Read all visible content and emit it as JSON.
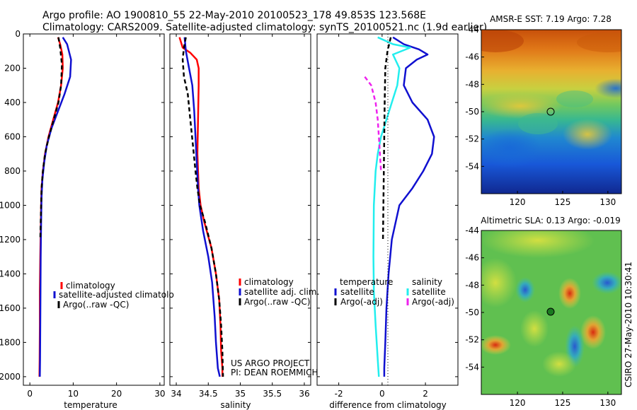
{
  "header": {
    "line1": "Argo profile: AO 1900810_55 22-May-2010 20100523_178 49.853S 123.568E",
    "line2": "Climatology: CARS2009. Satellite-adjusted climatology: synTS_20100521.nc (1.9d earlier)"
  },
  "credits": {
    "project": "US ARGO PROJECT",
    "pi": "PI: DEAN ROEMMICH",
    "stamp": "CSIRO 27-May-2010 10:30:41"
  },
  "colors": {
    "climatology": "#ff0000",
    "satellite": "#1010d0",
    "argo": "#000000",
    "satellite_sal": "#22eeee",
    "argo_sal_adj": "#ee22ee"
  },
  "chart_data": [
    {
      "type": "line",
      "xlabel": "temperature",
      "ylim": [
        2050,
        0
      ],
      "xlim": [
        -1.5,
        31
      ],
      "xticks": [
        0,
        10,
        20,
        30
      ],
      "yticks": [
        0,
        200,
        400,
        600,
        800,
        1000,
        1200,
        1400,
        1600,
        1800,
        2000
      ],
      "legend": {
        "items": [
          "climatology",
          "satellite-adjusted climatolo",
          "Argo(..raw -QC)"
        ]
      },
      "series": [
        {
          "name": "climatology",
          "color": "#ff0000",
          "dash": "",
          "x": [
            6.5,
            7.0,
            7.5,
            7.6,
            7.2,
            6.5,
            5.4,
            4.3,
            3.5,
            3.0,
            2.7,
            2.6,
            2.5,
            2.4,
            2.3,
            2.3,
            2.25,
            2.2
          ],
          "y": [
            20,
            60,
            120,
            200,
            300,
            400,
            500,
            600,
            700,
            800,
            900,
            1000,
            1150,
            1300,
            1500,
            1700,
            1900,
            2000
          ]
        },
        {
          "name": "satellite-adjusted climatology",
          "color": "#1010d0",
          "dash": "",
          "x": [
            7.6,
            8.6,
            9.5,
            9.3,
            8.0,
            6.5,
            5.0,
            3.9,
            3.3,
            2.9,
            2.7,
            2.6,
            2.5,
            2.45,
            2.4,
            2.35,
            2.3
          ],
          "y": [
            20,
            60,
            150,
            250,
            350,
            450,
            550,
            650,
            750,
            850,
            950,
            1100,
            1300,
            1500,
            1700,
            1900,
            2000
          ]
        },
        {
          "name": "Argo(..raw -QC)",
          "color": "#000000",
          "dash": "6,4",
          "x": [
            6.6,
            7.0,
            7.4,
            7.2,
            6.6,
            5.5,
            4.4,
            3.5,
            3.0,
            2.7,
            2.6,
            2.5,
            2.4
          ],
          "y": [
            20,
            80,
            180,
            300,
            400,
            500,
            600,
            700,
            800,
            900,
            1000,
            1100,
            1200
          ]
        }
      ]
    },
    {
      "type": "line",
      "xlabel": "salinity",
      "ylim": [
        2050,
        0
      ],
      "xlim": [
        33.9,
        36.1
      ],
      "xticks": [
        34,
        34.5,
        35,
        35.5,
        36
      ],
      "legend": {
        "items": [
          "climatology",
          "satellite adj. clim.",
          "Argo(..raw -QC)"
        ]
      },
      "series": [
        {
          "name": "climatology",
          "color": "#ff0000",
          "dash": "",
          "x": [
            34.05,
            34.1,
            34.22,
            34.32,
            34.35,
            34.35,
            34.34,
            34.33,
            34.35,
            34.38,
            34.44,
            34.55,
            34.62,
            34.67,
            34.69,
            34.7,
            34.72,
            34.72
          ],
          "y": [
            20,
            80,
            110,
            150,
            200,
            300,
            500,
            700,
            900,
            1000,
            1100,
            1250,
            1400,
            1550,
            1700,
            1850,
            1950,
            2000
          ]
        },
        {
          "name": "satellite adj. clim.",
          "color": "#1010d0",
          "dash": "",
          "x": [
            34.13,
            34.15,
            34.2,
            34.25,
            34.28,
            34.3,
            34.32,
            34.34,
            34.36,
            34.42,
            34.5,
            34.56,
            34.58,
            34.6,
            34.62,
            34.65,
            34.68
          ],
          "y": [
            20,
            100,
            200,
            300,
            450,
            600,
            750,
            900,
            1000,
            1150,
            1300,
            1450,
            1550,
            1650,
            1800,
            1950,
            2000
          ]
        },
        {
          "name": "Argo(..raw -QC)",
          "color": "#000000",
          "dash": "6,4",
          "x": [
            34.15,
            34.12,
            34.1,
            34.12,
            34.18,
            34.22,
            34.26,
            34.3,
            34.33,
            34.37,
            34.45,
            34.55,
            34.62,
            34.67,
            34.7,
            34.72,
            34.73
          ],
          "y": [
            20,
            80,
            150,
            250,
            350,
            500,
            650,
            800,
            900,
            1000,
            1100,
            1250,
            1400,
            1550,
            1700,
            1850,
            2000
          ]
        }
      ]
    },
    {
      "type": "line",
      "xlabel": "difference from climatology",
      "ylim": [
        2050,
        0
      ],
      "xlim": [
        -3.0,
        3.5
      ],
      "xticks": [
        -2,
        0,
        2
      ],
      "legend": {
        "col1_title": "temperature",
        "col2_title": "salinity",
        "items": [
          "satellite",
          "Argo(-adj)",
          "satellite",
          "Argo(-adj)"
        ]
      },
      "series": [
        {
          "name": "temperature satellite",
          "color": "#1010d0",
          "dash": "",
          "x": [
            0.5,
            1.0,
            1.7,
            2.1,
            1.6,
            1.1,
            1.0,
            1.4,
            2.1,
            2.4,
            2.3,
            1.9,
            1.4,
            0.8,
            0.45,
            0.3,
            0.2,
            0.15,
            0.1,
            0.1
          ],
          "y": [
            20,
            60,
            90,
            120,
            150,
            200,
            300,
            400,
            500,
            600,
            700,
            800,
            900,
            1000,
            1200,
            1400,
            1600,
            1800,
            1950,
            2000
          ]
        },
        {
          "name": "salinity satellite",
          "color": "#22eeee",
          "dash": "",
          "x": [
            -0.2,
            0.5,
            1.3,
            0.5,
            0.8,
            0.7,
            0.45,
            0.2,
            -0.05,
            -0.2,
            -0.3,
            -0.38,
            -0.4,
            -0.38,
            -0.3,
            -0.2,
            -0.15
          ],
          "y": [
            20,
            60,
            80,
            120,
            200,
            300,
            400,
            500,
            600,
            700,
            800,
            1000,
            1300,
            1500,
            1700,
            1900,
            2000
          ]
        },
        {
          "name": "temperature Argo(-adj)",
          "color": "#000000",
          "dash": "6,4",
          "x": [
            0.4,
            0.25,
            0.15,
            0.12,
            0.1,
            0.08,
            0.06,
            0.05,
            0.04
          ],
          "y": [
            20,
            100,
            200,
            400,
            600,
            800,
            1000,
            1100,
            1200
          ]
        },
        {
          "name": "salinity Argo(-adj)",
          "color": "#ee22ee",
          "dash": "6,4",
          "x": [
            -0.8,
            -0.5,
            -0.3,
            -0.2,
            -0.15,
            -0.1,
            -0.05
          ],
          "y": [
            250,
            300,
            400,
            500,
            600,
            700,
            800
          ]
        }
      ]
    },
    {
      "type": "heatmap",
      "title": "AMSR-E SST: 7.19 Argo: 7.28",
      "xlim": [
        116,
        131.5
      ],
      "ylim": [
        -56,
        -44
      ],
      "xticks": [
        120,
        125,
        130
      ],
      "yticks": [
        -44,
        -46,
        -48,
        -50,
        -52,
        -54
      ],
      "marker": {
        "lon": 123.568,
        "lat": -49.853
      }
    },
    {
      "type": "heatmap",
      "title": "Altimetric SLA: 0.13 Argo: -0.019",
      "xlim": [
        116,
        131.5
      ],
      "ylim": [
        -56,
        -44
      ],
      "xticks": [
        120,
        125,
        130
      ],
      "yticks": [
        -44,
        -46,
        -48,
        -50,
        -52,
        -54
      ],
      "marker": {
        "lon": 123.568,
        "lat": -49.853
      }
    }
  ]
}
